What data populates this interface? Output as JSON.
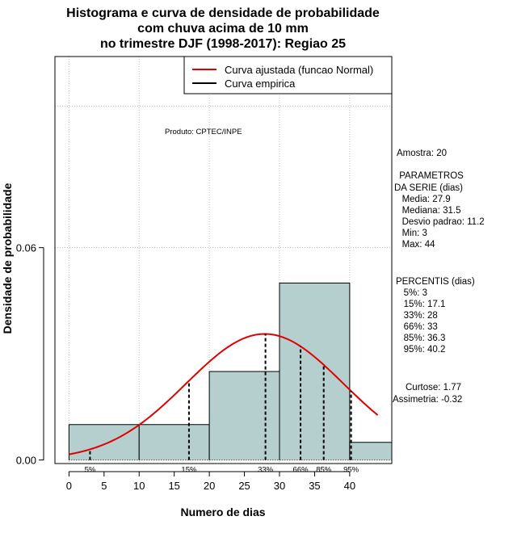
{
  "chart_data": {
    "type": "histogram",
    "title_lines": [
      "Histograma e curva de densidade de probabilidade",
      "com chuva acima de 10 mm",
      "no trimestre DJF (1998-2017): Regiao 25"
    ],
    "xlabel": "Numero de dias",
    "ylabel": "Densidade de probabilidade",
    "xlim": [
      -2,
      46
    ],
    "ylim": [
      -0.001,
      0.114
    ],
    "x_ticks": [
      0,
      5,
      10,
      15,
      20,
      25,
      30,
      35,
      40
    ],
    "y_ticks": [
      0.0,
      0.06
    ],
    "y_tick_labels": [
      "0.00",
      "0.06"
    ],
    "grid_x": [
      0,
      10,
      20,
      30,
      40
    ],
    "grid_y": [
      0.06,
      0.1
    ],
    "bins": [
      {
        "x0": 0,
        "x1": 10,
        "density": 0.01
      },
      {
        "x0": 10,
        "x1": 20,
        "density": 0.01
      },
      {
        "x0": 20,
        "x1": 30,
        "density": 0.025
      },
      {
        "x0": 30,
        "x1": 40,
        "density": 0.05
      },
      {
        "x0": 40,
        "x1": 46,
        "density": 0.005
      }
    ],
    "bar_color": "#b5cfcf",
    "fitted_curve": {
      "type": "normal",
      "mean": 27.9,
      "sd": 11.2,
      "x_range": [
        0,
        44
      ],
      "color": "#e00000"
    },
    "percentile_lines": [
      {
        "label": "5%",
        "x": 3
      },
      {
        "label": "15%",
        "x": 17.1
      },
      {
        "label": "33%",
        "x": 28
      },
      {
        "label": "66%",
        "x": 33
      },
      {
        "label": "85%",
        "x": 36.3
      },
      {
        "label": "95%",
        "x": 40.2
      }
    ],
    "legend": {
      "position": "top-right",
      "entries": [
        {
          "label": "Curva ajustada (funcao Normal)",
          "color": "#e00000"
        },
        {
          "label": "Curva empirica",
          "color": "#000000"
        }
      ]
    },
    "annotations": {
      "produto": "Produto: CPTEC/INPE",
      "amostra": "Amostra: 20",
      "parametros": [
        " PARAMETROS",
        "DA SERIE (dias)",
        "   Media: 27.9",
        "   Mediana: 31.5",
        "   Desvio padrao: 11.2",
        "   Min: 3",
        "   Max: 44"
      ],
      "percentis": [
        "PERCENTIS (dias)",
        "   5%: 3",
        "   15%: 17.1",
        "   33%: 28",
        "   66%: 33",
        "   85%: 36.3",
        "   95%: 40.2"
      ],
      "curtose": "Curtose: 1.77",
      "assimetria": "Assimetria: -0.32"
    }
  }
}
